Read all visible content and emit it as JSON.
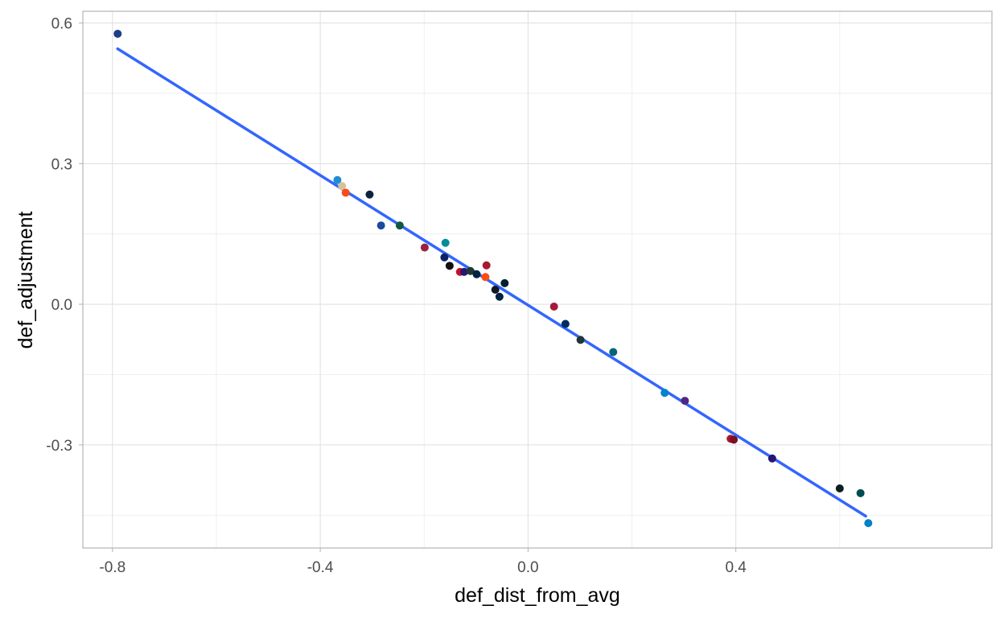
{
  "chart_data": {
    "type": "scatter",
    "xlabel": "def_dist_from_avg",
    "ylabel": "def_adjustment",
    "xlim": [
      -0.857,
      0.893
    ],
    "ylim": [
      -0.52,
      0.625
    ],
    "x_ticks": [
      -0.8,
      -0.4,
      0.0,
      0.4
    ],
    "x_tick_labels": [
      "-0.8",
      "-0.4",
      "0.0",
      "0.4"
    ],
    "y_ticks": [
      -0.3,
      0.0,
      0.3,
      0.6
    ],
    "y_tick_labels": [
      "-0.3",
      "0.0",
      "0.3",
      "0.6"
    ],
    "grid": true,
    "trend_line": {
      "x": [
        -0.79,
        0.65
      ],
      "y": [
        0.545,
        -0.452
      ],
      "color": "#3366ff"
    },
    "points": [
      {
        "x": -0.79,
        "y": 0.577,
        "color": "#1d3f8a"
      },
      {
        "x": -0.367,
        "y": 0.265,
        "color": "#1f8fd0"
      },
      {
        "x": -0.358,
        "y": 0.252,
        "color": "#d6c29a"
      },
      {
        "x": -0.351,
        "y": 0.238,
        "color": "#f74d18"
      },
      {
        "x": -0.305,
        "y": 0.234,
        "color": "#0c2340"
      },
      {
        "x": -0.283,
        "y": 0.168,
        "color": "#1c4a9c"
      },
      {
        "x": -0.247,
        "y": 0.168,
        "color": "#125740"
      },
      {
        "x": -0.199,
        "y": 0.121,
        "color": "#97233f"
      },
      {
        "x": -0.159,
        "y": 0.131,
        "color": "#008e97"
      },
      {
        "x": -0.161,
        "y": 0.1,
        "color": "#0b2265"
      },
      {
        "x": -0.151,
        "y": 0.082,
        "color": "#111111"
      },
      {
        "x": -0.131,
        "y": 0.069,
        "color": "#c8102e"
      },
      {
        "x": -0.123,
        "y": 0.069,
        "color": "#241773"
      },
      {
        "x": -0.111,
        "y": 0.071,
        "color": "#203731"
      },
      {
        "x": -0.099,
        "y": 0.064,
        "color": "#002244"
      },
      {
        "x": -0.08,
        "y": 0.083,
        "color": "#a71930"
      },
      {
        "x": -0.082,
        "y": 0.058,
        "color": "#fb4f14"
      },
      {
        "x": -0.063,
        "y": 0.031,
        "color": "#101820"
      },
      {
        "x": -0.055,
        "y": 0.016,
        "color": "#002244"
      },
      {
        "x": -0.045,
        "y": 0.045,
        "color": "#03202f"
      },
      {
        "x": 0.05,
        "y": -0.005,
        "color": "#a5193d"
      },
      {
        "x": 0.072,
        "y": -0.042,
        "color": "#002c5f"
      },
      {
        "x": 0.101,
        "y": -0.076,
        "color": "#203731"
      },
      {
        "x": 0.164,
        "y": -0.102,
        "color": "#006778"
      },
      {
        "x": 0.263,
        "y": -0.189,
        "color": "#0085ca"
      },
      {
        "x": 0.302,
        "y": -0.206,
        "color": "#4f2683"
      },
      {
        "x": 0.39,
        "y": -0.287,
        "color": "#a71930"
      },
      {
        "x": 0.396,
        "y": -0.289,
        "color": "#7a1022"
      },
      {
        "x": 0.47,
        "y": -0.329,
        "color": "#241773"
      },
      {
        "x": 0.6,
        "y": -0.393,
        "color": "#0a1f1f"
      },
      {
        "x": 0.64,
        "y": -0.403,
        "color": "#004c54"
      },
      {
        "x": 0.655,
        "y": -0.467,
        "color": "#0080c6"
      }
    ]
  }
}
